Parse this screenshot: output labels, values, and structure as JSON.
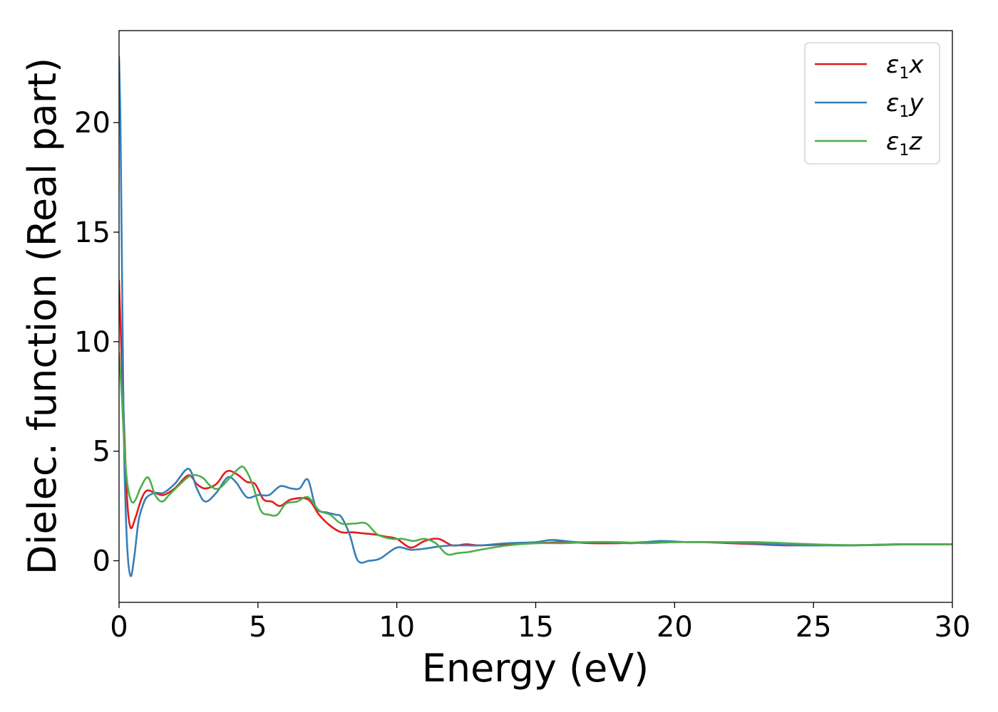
{
  "chart_data": {
    "type": "line",
    "xlabel": "Energy (eV)",
    "ylabel": "Dielec. function (Real part)",
    "xlim": [
      0,
      30
    ],
    "ylim": [
      -1.9,
      24.2
    ],
    "xticks": [
      0,
      5,
      10,
      15,
      20,
      25,
      30
    ],
    "yticks": [
      0,
      5,
      10,
      15,
      20
    ],
    "grid": false,
    "legend_position": "top-right",
    "series": [
      {
        "name": "ε1x",
        "legend": {
          "symbol": "ε",
          "sub": "1",
          "var": "x"
        },
        "color": "#e41a1c",
        "x": [
          0,
          0.1,
          0.2,
          0.3,
          0.42,
          0.6,
          0.8,
          1.0,
          1.3,
          1.6,
          2.0,
          2.5,
          2.8,
          3.1,
          3.5,
          3.8,
          4.0,
          4.3,
          4.6,
          4.9,
          5.2,
          5.5,
          5.8,
          6.2,
          6.8,
          7.2,
          7.6,
          8.0,
          8.4,
          8.8,
          9.2,
          9.6,
          10.0,
          10.5,
          11.0,
          11.5,
          12.0,
          12.5,
          13.0,
          14.0,
          15.0,
          16.0,
          17.0,
          18.0,
          19.0,
          20.0,
          21.0,
          22.0,
          23.0,
          24.0,
          25.0,
          26.0,
          27.0,
          28.0,
          29.0,
          30.0
        ],
        "y": [
          12.8,
          9.0,
          5.5,
          2.6,
          1.5,
          2.0,
          2.8,
          3.2,
          3.1,
          3.0,
          3.3,
          3.9,
          3.5,
          3.3,
          3.5,
          4.0,
          4.1,
          3.9,
          3.6,
          3.5,
          2.8,
          2.7,
          2.5,
          2.8,
          2.8,
          2.1,
          1.6,
          1.3,
          1.3,
          1.25,
          1.2,
          1.1,
          1.0,
          0.6,
          0.9,
          1.0,
          0.7,
          0.75,
          0.7,
          0.75,
          0.8,
          0.85,
          0.8,
          0.8,
          0.85,
          0.85,
          0.85,
          0.8,
          0.75,
          0.7,
          0.72,
          0.7,
          0.72,
          0.75,
          0.75,
          0.75
        ]
      },
      {
        "name": "ε1y",
        "legend": {
          "symbol": "ε",
          "sub": "1",
          "var": "y"
        },
        "color": "#377eb8",
        "x": [
          0,
          0.05,
          0.1,
          0.15,
          0.2,
          0.3,
          0.42,
          0.55,
          0.7,
          0.85,
          1.0,
          1.3,
          1.6,
          2.0,
          2.5,
          2.8,
          3.1,
          3.5,
          3.9,
          4.2,
          4.6,
          5.0,
          5.4,
          5.8,
          6.2,
          6.5,
          6.8,
          7.1,
          7.5,
          7.8,
          8.0,
          8.3,
          8.6,
          9.0,
          9.4,
          10.0,
          10.5,
          11.0,
          11.5,
          12.0,
          12.5,
          13.0,
          14.0,
          15.0,
          15.6,
          16.5,
          17.5,
          18.5,
          19.5,
          20.5,
          21.5,
          22.5,
          23.5,
          24.5,
          25.5,
          26.5,
          27.5,
          28.5,
          29.5,
          30.0
        ],
        "y": [
          23.0,
          20.0,
          14.0,
          8.0,
          4.0,
          0.5,
          -0.7,
          0.2,
          1.8,
          2.5,
          2.9,
          3.1,
          3.1,
          3.5,
          4.2,
          3.3,
          2.7,
          3.1,
          3.8,
          3.6,
          2.9,
          3.0,
          3.0,
          3.4,
          3.3,
          3.3,
          3.7,
          2.4,
          2.2,
          2.1,
          2.0,
          1.2,
          0.0,
          0.0,
          0.1,
          0.6,
          0.5,
          0.55,
          0.65,
          0.7,
          0.7,
          0.7,
          0.8,
          0.85,
          0.95,
          0.85,
          0.85,
          0.8,
          0.9,
          0.85,
          0.85,
          0.8,
          0.75,
          0.7,
          0.7,
          0.7,
          0.72,
          0.75,
          0.75,
          0.75
        ]
      },
      {
        "name": "ε1z",
        "legend": {
          "symbol": "ε",
          "sub": "1",
          "var": "z"
        },
        "color": "#4daf4a",
        "x": [
          0,
          0.1,
          0.2,
          0.3,
          0.45,
          0.6,
          0.8,
          1.05,
          1.3,
          1.55,
          1.8,
          2.2,
          2.6,
          3.0,
          3.3,
          3.6,
          4.0,
          4.3,
          4.5,
          4.8,
          5.1,
          5.4,
          5.7,
          6.0,
          6.4,
          6.8,
          7.2,
          7.6,
          8.0,
          8.5,
          8.9,
          9.3,
          9.8,
          10.2,
          10.6,
          11.0,
          11.4,
          11.8,
          12.2,
          12.6,
          13.0,
          14.0,
          15.0,
          16.0,
          17.0,
          18.0,
          19.0,
          20.0,
          21.0,
          22.0,
          23.0,
          24.0,
          25.0,
          26.0,
          27.0,
          28.0,
          29.0,
          30.0
        ],
        "y": [
          9.5,
          7.5,
          5.0,
          3.5,
          2.7,
          2.8,
          3.4,
          3.8,
          3.0,
          2.7,
          3.0,
          3.5,
          3.9,
          3.8,
          3.4,
          3.3,
          3.8,
          4.2,
          4.25,
          3.5,
          2.3,
          2.1,
          2.1,
          2.6,
          2.7,
          2.9,
          2.3,
          2.1,
          1.7,
          1.7,
          1.7,
          1.2,
          1.0,
          1.0,
          0.9,
          1.0,
          0.8,
          0.3,
          0.35,
          0.4,
          0.5,
          0.7,
          0.8,
          0.8,
          0.85,
          0.85,
          0.8,
          0.85,
          0.85,
          0.85,
          0.85,
          0.8,
          0.75,
          0.72,
          0.72,
          0.75,
          0.75,
          0.75
        ]
      }
    ]
  }
}
